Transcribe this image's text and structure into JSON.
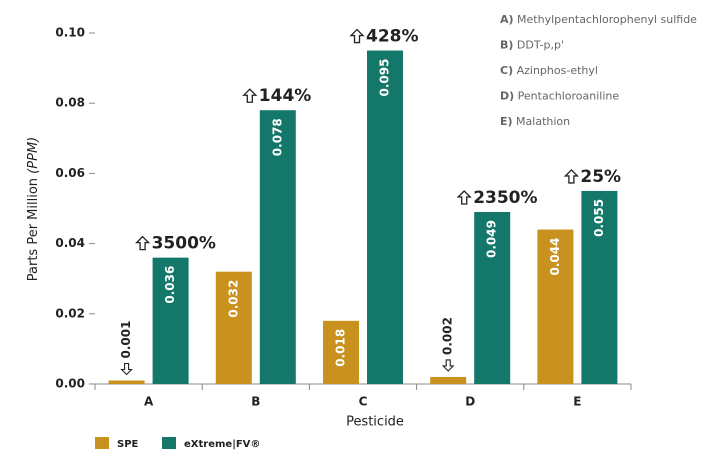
{
  "chart_data": {
    "type": "bar",
    "xlabel": "Pesticide",
    "ylabel": "Parts Per Million",
    "ylabel_unit": "(PPM)",
    "categories": [
      "A",
      "B",
      "C",
      "D",
      "E"
    ],
    "series": [
      {
        "name": "SPE",
        "color": "#c9921f",
        "values": [
          0.001,
          0.032,
          0.018,
          0.002,
          0.044
        ]
      },
      {
        "name": "eXtreme|FV®",
        "color": "#137769",
        "values": [
          0.036,
          0.078,
          0.095,
          0.049,
          0.055
        ]
      }
    ],
    "annotations": [
      "3500%",
      "144%",
      "428%",
      "2350%",
      "25%"
    ],
    "pesticide_key": [
      {
        "letter": "A)",
        "name": "Methylpentachlorophenyl sulfide"
      },
      {
        "letter": "B)",
        "name": "DDT-p,p'"
      },
      {
        "letter": "C)",
        "name": "Azinphos-ethyl"
      },
      {
        "letter": "D)",
        "name": "Pentachloroaniline"
      },
      {
        "letter": "E)",
        "name": "Malathion"
      }
    ],
    "ylim": [
      0,
      0.1
    ],
    "yticks": [
      {
        "value": 0,
        "label": "0.00"
      },
      0.02,
      0.04,
      0.06,
      0.08,
      {
        "value": 0.1,
        "label": "0.10"
      }
    ]
  }
}
